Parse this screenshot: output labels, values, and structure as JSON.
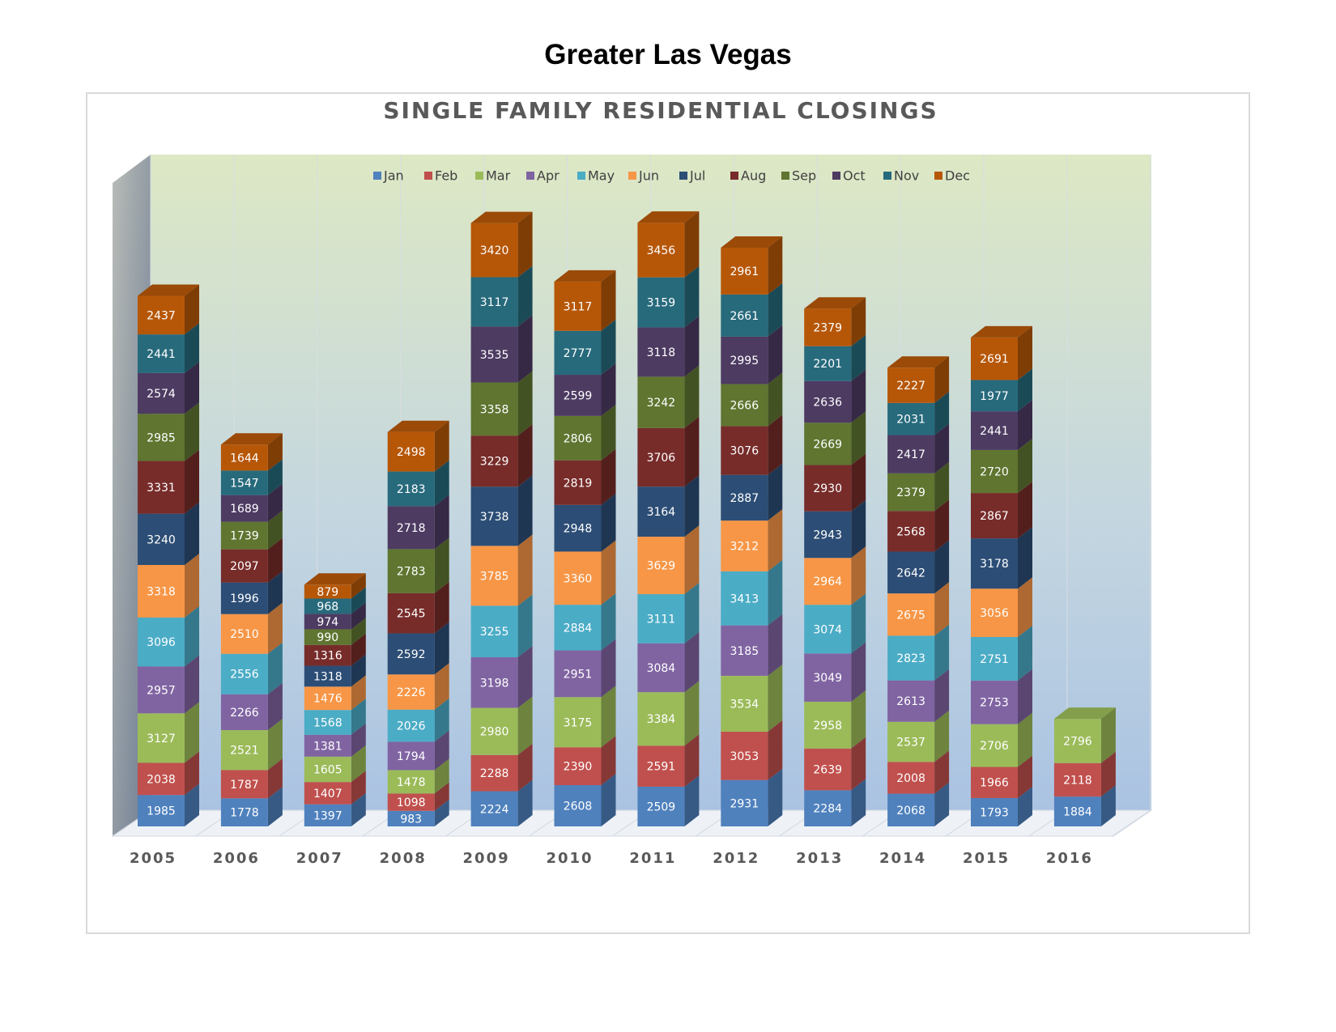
{
  "page": {
    "title": "Greater Las Vegas"
  },
  "chart_data": {
    "type": "bar",
    "stacked": true,
    "three_d": true,
    "title": "SINGLE FAMILY RESIDENTIAL CLOSINGS",
    "xlabel": "",
    "ylabel": "",
    "legend_position": "top",
    "grid": true,
    "categories": [
      "2005",
      "2006",
      "2007",
      "2008",
      "2009",
      "2010",
      "2011",
      "2012",
      "2013",
      "2014",
      "2015",
      "2016"
    ],
    "series": [
      {
        "name": "Jan",
        "color": "#4f81bd",
        "values": [
          1985,
          1778,
          1397,
          983,
          2224,
          2608,
          2509,
          2931,
          2284,
          2068,
          1793,
          1884
        ]
      },
      {
        "name": "Feb",
        "color": "#c0504d",
        "values": [
          2038,
          1787,
          1407,
          1098,
          2288,
          2390,
          2591,
          3053,
          2639,
          2008,
          1966,
          2118
        ]
      },
      {
        "name": "Mar",
        "color": "#9bbb59",
        "values": [
          3127,
          2521,
          1605,
          1478,
          2980,
          3175,
          3384,
          3534,
          2958,
          2537,
          2706,
          2796
        ]
      },
      {
        "name": "Apr",
        "color": "#8064a2",
        "values": [
          2957,
          2266,
          1381,
          1794,
          3198,
          2951,
          3084,
          3185,
          3049,
          2613,
          2753,
          null
        ]
      },
      {
        "name": "May",
        "color": "#4bacc6",
        "values": [
          3096,
          2556,
          1568,
          2026,
          3255,
          2884,
          3111,
          3413,
          3074,
          2823,
          2751,
          null
        ]
      },
      {
        "name": "Jun",
        "color": "#f79646",
        "values": [
          3318,
          2510,
          1476,
          2226,
          3785,
          3360,
          3629,
          3212,
          2964,
          2675,
          3056,
          null
        ]
      },
      {
        "name": "Jul",
        "color": "#2c4d75",
        "values": [
          3240,
          1996,
          1318,
          2592,
          3738,
          2948,
          3164,
          2887,
          2943,
          2642,
          3178,
          null
        ]
      },
      {
        "name": "Aug",
        "color": "#772c2a",
        "values": [
          3331,
          2097,
          1316,
          2545,
          3229,
          2819,
          3706,
          3076,
          2930,
          2568,
          2867,
          null
        ]
      },
      {
        "name": "Sep",
        "color": "#5f7530",
        "values": [
          2985,
          1739,
          990,
          2783,
          3358,
          2806,
          3242,
          2666,
          2669,
          2379,
          2720,
          null
        ]
      },
      {
        "name": "Oct",
        "color": "#4d3b62",
        "values": [
          2574,
          1689,
          974,
          2718,
          3535,
          2599,
          3118,
          2995,
          2636,
          2417,
          2441,
          null
        ]
      },
      {
        "name": "Nov",
        "color": "#276a7c",
        "values": [
          2441,
          1547,
          968,
          2183,
          3117,
          2777,
          3159,
          2661,
          2201,
          2031,
          1977,
          null
        ]
      },
      {
        "name": "Dec",
        "color": "#b65708",
        "values": [
          2437,
          1644,
          879,
          2498,
          3420,
          3117,
          3456,
          2961,
          2379,
          2227,
          2691,
          null
        ]
      }
    ]
  }
}
